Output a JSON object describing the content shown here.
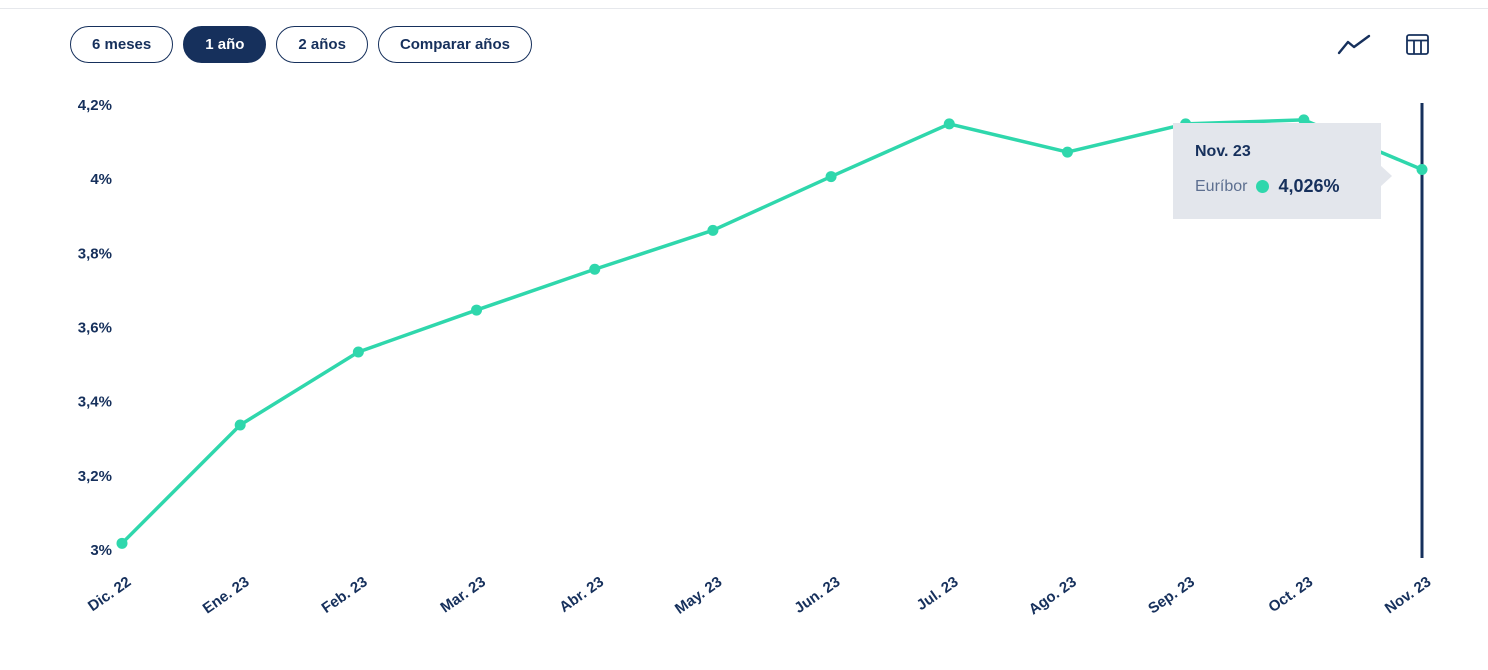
{
  "colors": {
    "navy": "#16305c",
    "accent": "#2fd7ac",
    "tooltip_bg": "#e3e6ec",
    "muted": "#5d6f90"
  },
  "toolbar": {
    "ranges": [
      {
        "label": "6 meses",
        "active": false
      },
      {
        "label": "1 año",
        "active": true
      },
      {
        "label": "2 años",
        "active": false
      },
      {
        "label": "Comparar años",
        "active": false
      }
    ],
    "view_icons": [
      {
        "name": "line-chart-icon"
      },
      {
        "name": "table-icon"
      }
    ]
  },
  "tooltip": {
    "title": "Nov. 23",
    "series": "Euríbor",
    "value": "4,026%"
  },
  "chart_data": {
    "type": "line",
    "title": "",
    "series_name": "Euríbor",
    "categories": [
      "Dic. 22",
      "Ene. 23",
      "Feb. 23",
      "Mar. 23",
      "Abr. 23",
      "May. 23",
      "Jun. 23",
      "Jul. 23",
      "Ago. 23",
      "Sep. 23",
      "Oct. 23",
      "Nov. 23"
    ],
    "values": [
      3.018,
      3.337,
      3.534,
      3.647,
      3.757,
      3.862,
      4.007,
      4.149,
      4.073,
      4.149,
      4.16,
      4.026
    ],
    "ylim": [
      3.0,
      4.2
    ],
    "yticks": {
      "labels": [
        "4,2%",
        "4%",
        "3,8%",
        "3,6%",
        "3,4%",
        "3,2%",
        "3%"
      ],
      "values": [
        4.2,
        4.0,
        3.8,
        3.6,
        3.4,
        3.2,
        3.0
      ]
    },
    "grid": false,
    "legend": "none",
    "highlight_index": 11,
    "line_color": "#2fd7ac",
    "xlabel": "",
    "ylabel": ""
  }
}
